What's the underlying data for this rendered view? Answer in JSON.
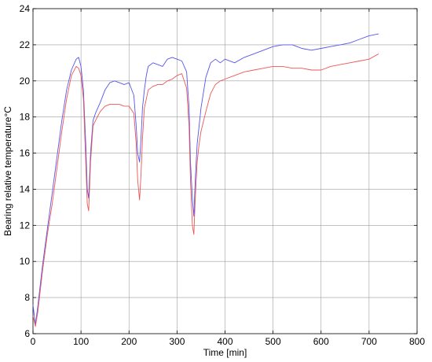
{
  "chart_data": {
    "type": "line",
    "title": "",
    "xlabel": "Time [min]",
    "ylabel": "Bearing relative temperature°C",
    "xlim": [
      0,
      800
    ],
    "ylim": [
      6,
      24
    ],
    "x_ticks": [
      0,
      100,
      200,
      300,
      400,
      500,
      600,
      700,
      800
    ],
    "y_ticks": [
      6,
      8,
      10,
      12,
      14,
      16,
      18,
      20,
      22,
      24
    ],
    "grid": true,
    "legend": "none",
    "series": [
      {
        "color": "#5555ee",
        "x": [
          0,
          5,
          10,
          20,
          30,
          40,
          50,
          60,
          70,
          80,
          90,
          95,
          100,
          105,
          110,
          113,
          116,
          120,
          125,
          130,
          140,
          150,
          160,
          170,
          180,
          190,
          200,
          210,
          215,
          218,
          222,
          225,
          228,
          232,
          236,
          240,
          250,
          260,
          270,
          280,
          290,
          300,
          310,
          320,
          325,
          328,
          332,
          335,
          338,
          342,
          346,
          350,
          360,
          370,
          380,
          390,
          400,
          420,
          440,
          460,
          480,
          500,
          520,
          540,
          560,
          580,
          600,
          620,
          640,
          660,
          680,
          700,
          720
        ],
        "values": [
          7.6,
          6.5,
          7.5,
          9.8,
          11.8,
          13.8,
          15.8,
          17.8,
          19.5,
          20.6,
          21.2,
          21.3,
          20.8,
          19.5,
          16.5,
          14.0,
          13.5,
          16.0,
          17.8,
          18.2,
          18.8,
          19.5,
          19.9,
          20.0,
          19.9,
          19.8,
          19.9,
          19.2,
          17.5,
          16.0,
          15.5,
          16.8,
          18.5,
          19.5,
          20.3,
          20.8,
          21.0,
          20.9,
          20.8,
          21.2,
          21.3,
          21.2,
          21.1,
          20.5,
          18.5,
          15.5,
          13.5,
          12.5,
          14.5,
          16.5,
          17.5,
          18.5,
          20.2,
          21.0,
          21.2,
          21.0,
          21.2,
          21.0,
          21.3,
          21.5,
          21.7,
          21.9,
          22.0,
          22.0,
          21.8,
          21.7,
          21.8,
          21.9,
          22.0,
          22.1,
          22.3,
          22.5,
          22.6
        ]
      },
      {
        "color": "#ee5555",
        "x": [
          0,
          5,
          10,
          20,
          30,
          40,
          50,
          60,
          70,
          80,
          90,
          95,
          100,
          105,
          110,
          113,
          116,
          120,
          125,
          130,
          140,
          150,
          160,
          170,
          180,
          190,
          200,
          210,
          215,
          218,
          222,
          225,
          228,
          232,
          236,
          240,
          250,
          260,
          270,
          280,
          290,
          300,
          310,
          320,
          325,
          328,
          332,
          335,
          338,
          342,
          346,
          350,
          360,
          370,
          380,
          390,
          400,
          420,
          440,
          460,
          480,
          500,
          520,
          540,
          560,
          580,
          600,
          620,
          640,
          660,
          680,
          700,
          720
        ],
        "values": [
          7.0,
          6.4,
          7.2,
          9.5,
          11.5,
          13.2,
          15.2,
          17.2,
          19.0,
          20.3,
          20.8,
          20.7,
          20.3,
          19.0,
          15.5,
          13.2,
          12.8,
          15.5,
          17.5,
          17.8,
          18.3,
          18.6,
          18.7,
          18.7,
          18.7,
          18.6,
          18.6,
          18.2,
          16.5,
          14.5,
          13.4,
          14.8,
          16.8,
          18.5,
          19.0,
          19.5,
          19.7,
          19.8,
          19.8,
          20.0,
          20.1,
          20.3,
          20.4,
          19.6,
          17.5,
          14.5,
          12.0,
          11.5,
          13.5,
          15.5,
          16.5,
          17.2,
          18.3,
          19.3,
          19.8,
          20.0,
          20.1,
          20.3,
          20.5,
          20.6,
          20.7,
          20.8,
          20.8,
          20.7,
          20.7,
          20.6,
          20.6,
          20.8,
          20.9,
          21.0,
          21.1,
          21.2,
          21.5
        ]
      }
    ]
  }
}
